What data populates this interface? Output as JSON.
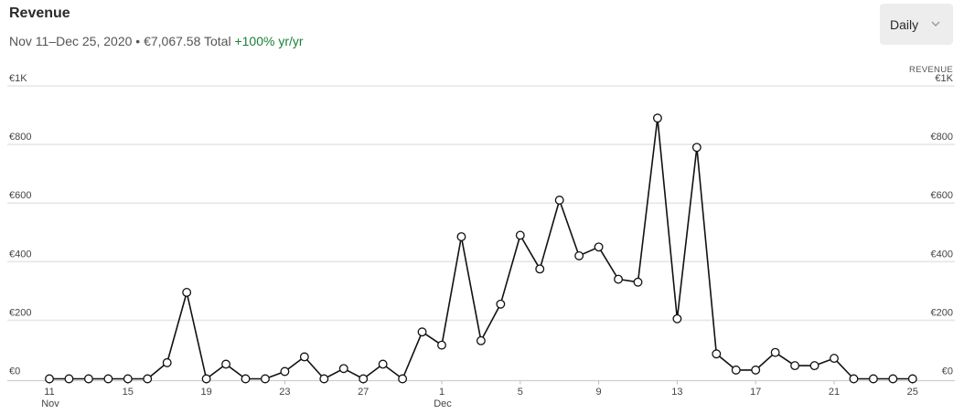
{
  "header": {
    "title": "Revenue",
    "date_range": "Nov 11–Dec 25, 2020",
    "separator": "•",
    "total": "€7,067.58 Total",
    "change": "+100% yr/yr",
    "change_color": "#1a7f37"
  },
  "period_select": {
    "value": "Daily",
    "icon": "chevron-down-icon"
  },
  "chart_data": {
    "type": "line",
    "series_label": "REVENUE",
    "ylim": [
      0,
      1000
    ],
    "y_ticks": [
      {
        "value": 0,
        "label": "€0"
      },
      {
        "value": 200,
        "label": "€200"
      },
      {
        "value": 400,
        "label": "€400"
      },
      {
        "value": 600,
        "label": "€600"
      },
      {
        "value": 800,
        "label": "€800"
      },
      {
        "value": 1000,
        "label": "€1K"
      }
    ],
    "x_ticks": [
      {
        "index": 0,
        "label": "11",
        "sublabel": "Nov"
      },
      {
        "index": 4,
        "label": "15"
      },
      {
        "index": 8,
        "label": "19"
      },
      {
        "index": 12,
        "label": "23"
      },
      {
        "index": 16,
        "label": "27"
      },
      {
        "index": 20,
        "label": "1",
        "sublabel": "Dec"
      },
      {
        "index": 24,
        "label": "5"
      },
      {
        "index": 28,
        "label": "9"
      },
      {
        "index": 32,
        "label": "13"
      },
      {
        "index": 36,
        "label": "17"
      },
      {
        "index": 40,
        "label": "21"
      },
      {
        "index": 44,
        "label": "25"
      }
    ],
    "x": [
      "2020-11-11",
      "2020-11-12",
      "2020-11-13",
      "2020-11-14",
      "2020-11-15",
      "2020-11-16",
      "2020-11-17",
      "2020-11-18",
      "2020-11-19",
      "2020-11-20",
      "2020-11-21",
      "2020-11-22",
      "2020-11-23",
      "2020-11-24",
      "2020-11-25",
      "2020-11-26",
      "2020-11-27",
      "2020-11-28",
      "2020-11-29",
      "2020-11-30",
      "2020-12-01",
      "2020-12-02",
      "2020-12-03",
      "2020-12-04",
      "2020-12-05",
      "2020-12-06",
      "2020-12-07",
      "2020-12-08",
      "2020-12-09",
      "2020-12-10",
      "2020-12-11",
      "2020-12-12",
      "2020-12-13",
      "2020-12-14",
      "2020-12-15",
      "2020-12-16",
      "2020-12-17",
      "2020-12-18",
      "2020-12-19",
      "2020-12-20",
      "2020-12-21",
      "2020-12-22",
      "2020-12-23",
      "2020-12-24",
      "2020-12-25"
    ],
    "values": [
      0,
      0,
      0,
      0,
      0,
      0,
      55,
      295,
      0,
      50,
      0,
      0,
      25,
      75,
      0,
      35,
      0,
      50,
      0,
      160,
      115,
      485,
      130,
      255,
      490,
      375,
      610,
      420,
      450,
      340,
      330,
      890,
      205,
      790,
      85,
      30,
      30,
      90,
      45,
      45,
      70,
      0,
      0,
      0,
      0
    ],
    "grid": true,
    "legend": "none",
    "line_color": "#111111",
    "grid_color": "#e6e6e6",
    "axis_color": "#cfcfcf"
  }
}
